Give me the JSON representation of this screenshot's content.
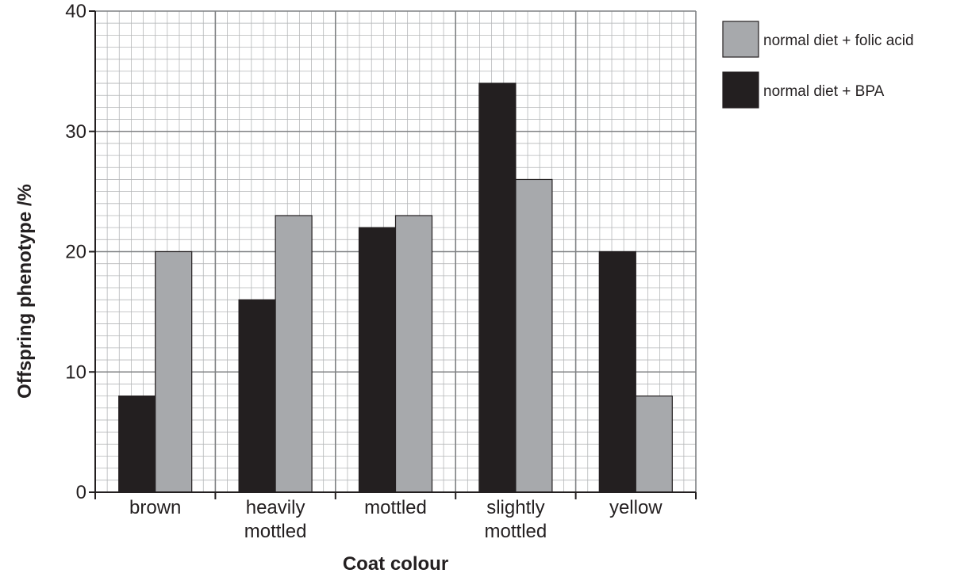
{
  "chart_data": {
    "type": "bar",
    "categories": [
      [
        "brown"
      ],
      [
        "heavily",
        "mottled"
      ],
      [
        "mottled"
      ],
      [
        "slightly",
        "mottled"
      ],
      [
        "yellow"
      ]
    ],
    "series": [
      {
        "name": "normal diet + BPA",
        "values": [
          8,
          16,
          22,
          34,
          20
        ],
        "color": "#231f20"
      },
      {
        "name": "normal diet + folic acid",
        "values": [
          20,
          23,
          23,
          26,
          8
        ],
        "color": "#a7a9ac"
      }
    ],
    "xlabel": "Coat colour",
    "ylabel": "Offspring phenotype /%",
    "ylim": [
      0,
      40
    ],
    "yticks": [
      0,
      10,
      20,
      30,
      40
    ],
    "grid": true,
    "legend": {
      "placement": "top-right",
      "order": [
        "normal diet + folic acid",
        "normal diet + BPA"
      ]
    }
  }
}
